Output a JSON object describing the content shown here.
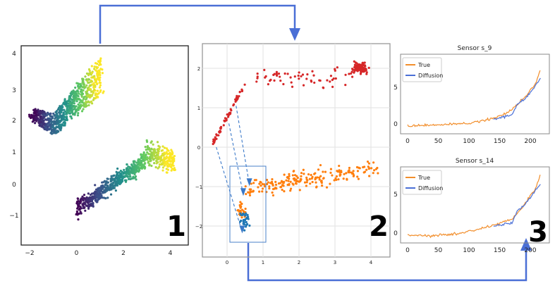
{
  "panels": {
    "p1": "1",
    "p2": "2",
    "p3": "3"
  },
  "chart_data": [
    {
      "type": "scatter",
      "panel_label": "1",
      "colormap": "viridis",
      "xticks": [
        "−2",
        "0",
        "2",
        "4"
      ],
      "yticks": [
        "4",
        "3",
        "2",
        "1",
        "0",
        "−1"
      ],
      "xlim": [
        -2.2,
        4.5
      ],
      "ylim": [
        -1.7,
        4.2
      ]
    },
    {
      "type": "scatter",
      "panel_label": "2",
      "grid": true,
      "xticks": [
        "0",
        "1",
        "2",
        "3",
        "4"
      ],
      "yticks": [
        "2",
        "1",
        "0",
        "−1",
        "−2"
      ],
      "xlim": [
        -0.6,
        4.4
      ],
      "ylim": [
        -2.8,
        2.6
      ],
      "series_colors": {
        "upper": "#d62728",
        "lower": "#ff7f0e",
        "selected": "#1f77b4"
      }
    },
    {
      "type": "line",
      "title": "Sensor s_9",
      "xticks": [
        "0",
        "50",
        "100",
        "150",
        "200"
      ],
      "yticks": [
        "0",
        "5"
      ],
      "legend": [
        "True",
        "Diffusion"
      ],
      "legend_position": "upper-left",
      "series": [
        {
          "name": "True",
          "color": "#f28e2b",
          "x": [
            0,
            20,
            40,
            60,
            80,
            100,
            120,
            140,
            150,
            160,
            170,
            180,
            190,
            200,
            210,
            217
          ],
          "values": [
            -0.3,
            -0.2,
            -0.2,
            -0.1,
            0,
            0.1,
            0.4,
            0.8,
            1.1,
            1.4,
            2,
            2.8,
            3.6,
            4.6,
            5.8,
            7.6
          ]
        },
        {
          "name": "Diffusion",
          "color": "#4a6fd6",
          "x": [
            140,
            150,
            160,
            170,
            180,
            190,
            200,
            210,
            217
          ],
          "values": [
            0.6,
            0.8,
            1,
            1.3,
            2.8,
            3.3,
            4.3,
            5.5,
            6.2
          ]
        }
      ]
    },
    {
      "type": "line",
      "title": "Sensor s_14",
      "xticks": [
        "0",
        "50",
        "100",
        "150",
        "200"
      ],
      "yticks": [
        "0",
        "5"
      ],
      "legend": [
        "True",
        "Diffusion"
      ],
      "legend_position": "upper-left",
      "series": [
        {
          "name": "True",
          "color": "#f28e2b",
          "x": [
            0,
            20,
            40,
            60,
            80,
            100,
            120,
            140,
            150,
            160,
            170,
            180,
            190,
            200,
            210,
            217
          ],
          "values": [
            -0.3,
            -0.3,
            -0.4,
            -0.2,
            -0.1,
            0.2,
            0.6,
            1,
            1.2,
            1.5,
            1.9,
            2.6,
            3.6,
            4.8,
            6,
            7.8
          ]
        },
        {
          "name": "Diffusion",
          "color": "#4a6fd6",
          "x": [
            140,
            150,
            160,
            170,
            180,
            190,
            200,
            210,
            217
          ],
          "values": [
            0.9,
            1,
            1.2,
            1.3,
            3,
            3.6,
            4.5,
            5.7,
            6.4
          ]
        }
      ]
    }
  ],
  "arrow_color": "#4a6fd6"
}
